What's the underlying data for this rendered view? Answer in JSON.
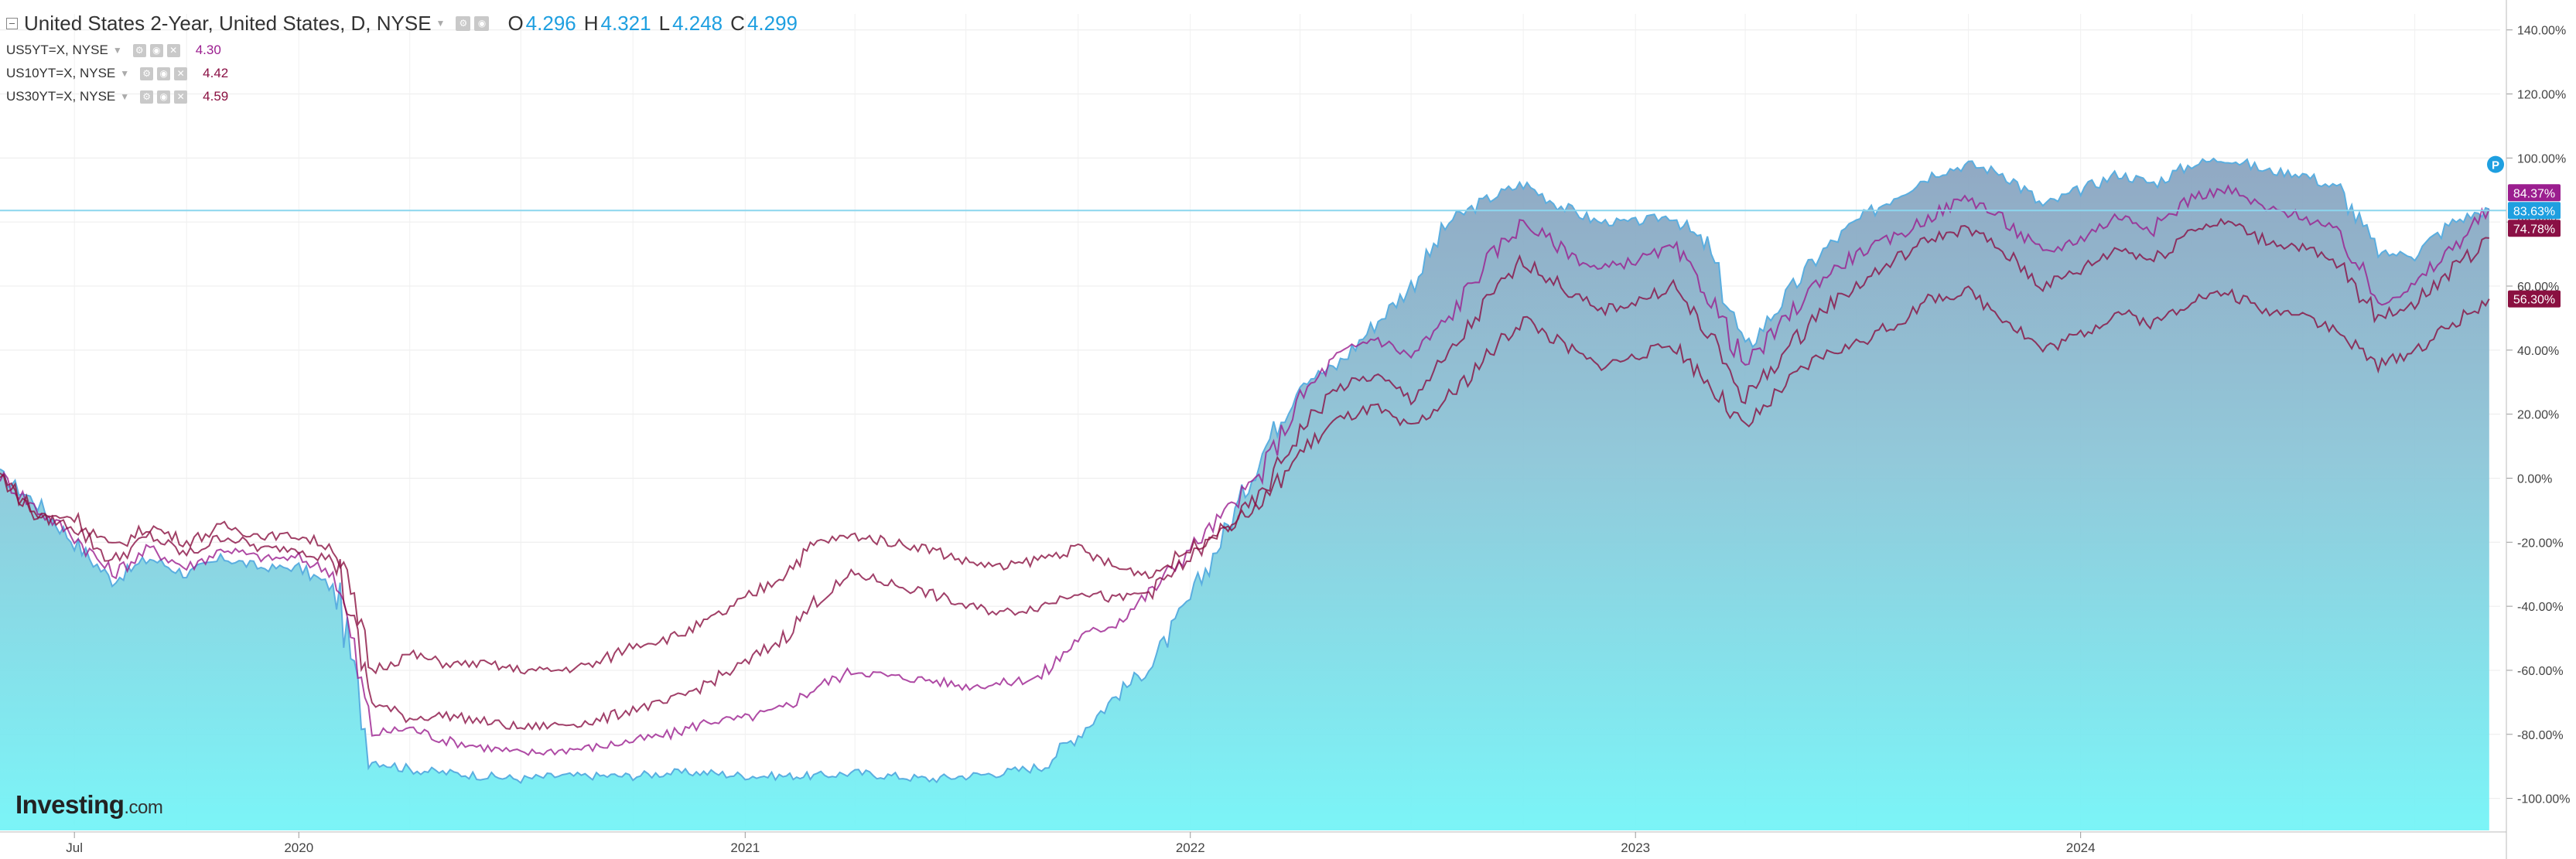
{
  "legend": {
    "main": {
      "title": "United States 2-Year, United States, D, NYSE",
      "o_label": "O",
      "o": "4.296",
      "h_label": "H",
      "h": "4.321",
      "l_label": "L",
      "l": "4.248",
      "c_label": "C",
      "c": "4.299"
    },
    "compare": [
      {
        "label": "US5YT=X, NYSE",
        "value": "4.30",
        "color": "#9b1e8f"
      },
      {
        "label": "US10YT=X, NYSE",
        "value": "4.42",
        "color": "#8a1045"
      },
      {
        "label": "US30YT=X, NYSE",
        "value": "4.59",
        "color": "#8a1040"
      }
    ]
  },
  "brand": {
    "name": "Investing",
    "suffix": ".com"
  },
  "icons": {
    "tool_icons": [
      "settings-icon",
      "eye-icon",
      "close-icon"
    ],
    "p_marker": "P"
  },
  "chart_data": {
    "type": "area",
    "mode": "percent-change comparison",
    "x_ticks": [
      "Jul",
      "2020",
      "2021",
      "2022",
      "2023",
      "2024"
    ],
    "y_ticks": [
      "140.00%",
      "120.00%",
      "100.00%",
      "80.00%",
      "60.00%",
      "40.00%",
      "20.00%",
      "0.00%",
      "-20.00%",
      "-40.00%",
      "-60.00%",
      "-80.00%",
      "-100.00%"
    ],
    "ylim": [
      -110,
      145
    ],
    "grid": true,
    "crosshair_y": 83.6,
    "x_dates": [
      "2019-05-01",
      "2019-06-01",
      "2019-07-01",
      "2019-08-01",
      "2019-09-01",
      "2019-10-01",
      "2019-11-01",
      "2019-12-01",
      "2020-01-01",
      "2020-02-01",
      "2020-03-01",
      "2020-04-01",
      "2020-05-01",
      "2020-06-01",
      "2020-07-01",
      "2020-08-01",
      "2020-09-01",
      "2020-10-01",
      "2020-11-01",
      "2020-12-01",
      "2021-01-01",
      "2021-02-01",
      "2021-03-01",
      "2021-04-01",
      "2021-05-01",
      "2021-06-01",
      "2021-07-01",
      "2021-08-01",
      "2021-09-01",
      "2021-10-01",
      "2021-11-01",
      "2021-12-01",
      "2022-01-01",
      "2022-02-01",
      "2022-03-01",
      "2022-04-01",
      "2022-05-01",
      "2022-06-01",
      "2022-07-01",
      "2022-08-01",
      "2022-09-01",
      "2022-10-01",
      "2022-11-01",
      "2022-12-01",
      "2023-01-01",
      "2023-02-01",
      "2023-03-01",
      "2023-04-01",
      "2023-05-01",
      "2023-06-01",
      "2023-07-01",
      "2023-08-01",
      "2023-09-01",
      "2023-10-01",
      "2023-11-01",
      "2023-12-01",
      "2024-01-01",
      "2024-02-01",
      "2024-03-01",
      "2024-04-01",
      "2024-05-01",
      "2024-06-01",
      "2024-07-01",
      "2024-08-01",
      "2024-09-01",
      "2024-10-01",
      "2024-11-01",
      "2024-12-01"
    ],
    "series": [
      {
        "name": "United States 2-Year",
        "style": "area",
        "color": "#5aaee0",
        "last_label": "83.63%",
        "values": [
          1,
          -8,
          -20,
          -32,
          -25,
          -30,
          -25,
          -28,
          -28,
          -35,
          -88,
          -91,
          -92,
          -93,
          -94,
          -93,
          -93,
          -93,
          -92,
          -92,
          -93,
          -93,
          -93,
          -92,
          -93,
          -94,
          -93,
          -92,
          -90,
          -80,
          -68,
          -58,
          -38,
          -15,
          8,
          30,
          35,
          48,
          60,
          80,
          87,
          92,
          85,
          80,
          80,
          82,
          72,
          40,
          55,
          70,
          80,
          88,
          95,
          98,
          95,
          85,
          90,
          95,
          92,
          98,
          100,
          96,
          95,
          90,
          70,
          70,
          80,
          84
        ]
      },
      {
        "name": "US5YT=X, NYSE",
        "style": "line",
        "color": "#9b1e8f",
        "last_label": "84.37%",
        "values": [
          1,
          -10,
          -18,
          -30,
          -22,
          -28,
          -22,
          -25,
          -25,
          -30,
          -80,
          -78,
          -82,
          -84,
          -86,
          -85,
          -84,
          -82,
          -80,
          -76,
          -75,
          -72,
          -65,
          -60,
          -62,
          -63,
          -65,
          -64,
          -62,
          -50,
          -45,
          -35,
          -22,
          -10,
          2,
          25,
          38,
          44,
          38,
          50,
          68,
          80,
          72,
          65,
          68,
          72,
          58,
          35,
          48,
          62,
          70,
          75,
          82,
          88,
          80,
          70,
          75,
          82,
          78,
          88,
          90,
          84,
          82,
          76,
          55,
          60,
          72,
          84
        ]
      },
      {
        "name": "US10YT=X, NYSE",
        "style": "line",
        "color": "#8a1045",
        "last_label": "74.78%",
        "values": [
          1,
          -12,
          -15,
          -26,
          -18,
          -24,
          -18,
          -22,
          -22,
          -26,
          -70,
          -75,
          -74,
          -76,
          -78,
          -77,
          -76,
          -72,
          -70,
          -64,
          -58,
          -50,
          -38,
          -30,
          -33,
          -36,
          -40,
          -42,
          -40,
          -35,
          -38,
          -35,
          -25,
          -15,
          -5,
          15,
          28,
          32,
          25,
          38,
          55,
          68,
          60,
          52,
          55,
          60,
          45,
          25,
          38,
          52,
          60,
          68,
          75,
          78,
          70,
          60,
          65,
          72,
          68,
          78,
          80,
          74,
          72,
          66,
          50,
          55,
          65,
          75
        ]
      },
      {
        "name": "US30YT=X, NYSE",
        "style": "line",
        "color": "#8a1040",
        "last_label": "56.30%",
        "values": [
          1,
          -12,
          -12,
          -22,
          -15,
          -20,
          -15,
          -18,
          -18,
          -22,
          -60,
          -55,
          -58,
          -58,
          -60,
          -60,
          -58,
          -52,
          -50,
          -45,
          -38,
          -30,
          -20,
          -18,
          -20,
          -22,
          -26,
          -28,
          -25,
          -22,
          -28,
          -30,
          -22,
          -15,
          -8,
          8,
          18,
          22,
          15,
          25,
          38,
          50,
          42,
          35,
          38,
          42,
          30,
          15,
          28,
          38,
          42,
          48,
          56,
          58,
          50,
          40,
          45,
          52,
          48,
          56,
          58,
          52,
          52,
          45,
          35,
          40,
          48,
          56
        ]
      }
    ]
  }
}
